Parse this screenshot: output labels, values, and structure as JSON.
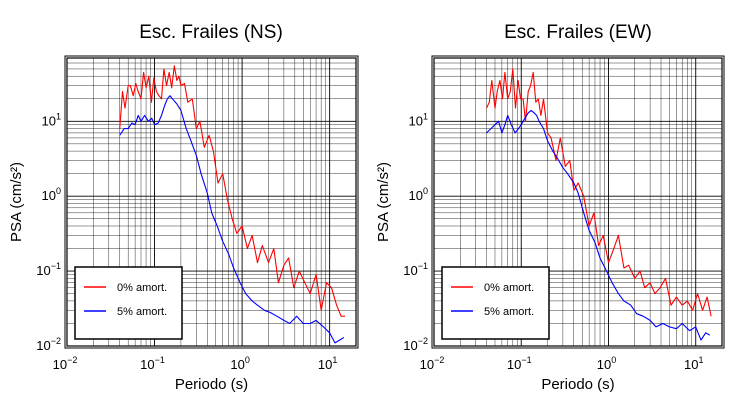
{
  "chart_data": [
    {
      "type": "line",
      "title": "Esc. Frailes (NS)",
      "xlabel": "Periodo (s)",
      "ylabel": "PSA (cm/s²)",
      "xscale": "log",
      "yscale": "log",
      "xlim": [
        0.01,
        20
      ],
      "ylim": [
        0.01,
        70
      ],
      "grid": true,
      "x_ticks": [
        {
          "base": "10",
          "exp": "−2"
        },
        {
          "base": "10",
          "exp": "−1"
        },
        {
          "base": "10",
          "exp": "0"
        },
        {
          "base": "10",
          "exp": "1"
        }
      ],
      "y_ticks": [
        {
          "base": "10",
          "exp": "−2"
        },
        {
          "base": "10",
          "exp": "−1"
        },
        {
          "base": "10",
          "exp": "0"
        },
        {
          "base": "10",
          "exp": "1"
        }
      ],
      "legend": {
        "position": "bottom-left"
      },
      "series": [
        {
          "name": "0% amort.",
          "color": "#ff0000",
          "x": [
            0.04,
            0.043,
            0.046,
            0.05,
            0.053,
            0.057,
            0.061,
            0.065,
            0.07,
            0.075,
            0.08,
            0.086,
            0.092,
            0.098,
            0.105,
            0.112,
            0.12,
            0.128,
            0.137,
            0.147,
            0.157,
            0.168,
            0.18,
            0.19,
            0.2,
            0.22,
            0.24,
            0.27,
            0.3,
            0.33,
            0.37,
            0.42,
            0.47,
            0.53,
            0.6,
            0.68,
            0.77,
            0.87,
            1.0,
            1.15,
            1.3,
            1.5,
            1.7,
            2.0,
            2.3,
            2.6,
            3.0,
            3.4,
            3.9,
            4.5,
            5.2,
            6.0,
            7.0,
            8.0,
            9.2,
            10.5,
            12.0,
            13.5,
            15.0
          ],
          "y": [
            8,
            25,
            15,
            30,
            30,
            22,
            32,
            25,
            20,
            45,
            28,
            40,
            18,
            38,
            25,
            22,
            20,
            50,
            30,
            45,
            28,
            55,
            35,
            40,
            30,
            32,
            18,
            20,
            8,
            10,
            4.5,
            6.5,
            4,
            1.5,
            2.0,
            0.9,
            0.5,
            0.32,
            0.4,
            0.2,
            0.3,
            0.13,
            0.22,
            0.13,
            0.2,
            0.07,
            0.12,
            0.15,
            0.06,
            0.1,
            0.07,
            0.05,
            0.09,
            0.03,
            0.07,
            0.06,
            0.035,
            0.025,
            0.025
          ]
        },
        {
          "name": "5% amort.",
          "color": "#0000ff",
          "x": [
            0.04,
            0.045,
            0.05,
            0.055,
            0.06,
            0.065,
            0.07,
            0.077,
            0.085,
            0.093,
            0.1,
            0.11,
            0.12,
            0.13,
            0.14,
            0.15,
            0.16,
            0.18,
            0.2,
            0.23,
            0.26,
            0.3,
            0.34,
            0.4,
            0.45,
            0.52,
            0.6,
            0.7,
            0.8,
            0.95,
            1.1,
            1.3,
            1.5,
            1.8,
            2.1,
            2.5,
            3.0,
            3.5,
            4.2,
            5.0,
            6.0,
            7.0,
            8.5,
            10.0,
            11.5,
            13.0,
            14.5
          ],
          "y": [
            6.5,
            8,
            8,
            9.5,
            9,
            12,
            10,
            12,
            10,
            11,
            9,
            9.5,
            12,
            16,
            20,
            22,
            20,
            17,
            14,
            8,
            5.5,
            3.5,
            2.0,
            1.1,
            0.6,
            0.4,
            0.25,
            0.17,
            0.11,
            0.07,
            0.05,
            0.04,
            0.035,
            0.03,
            0.028,
            0.025,
            0.022,
            0.02,
            0.025,
            0.02,
            0.02,
            0.022,
            0.018,
            0.015,
            0.011,
            0.012,
            0.013
          ]
        }
      ]
    },
    {
      "type": "line",
      "title": "Esc. Frailes (EW)",
      "xlabel": "Periodo (s)",
      "ylabel": "PSA (cm/s²)",
      "xscale": "log",
      "yscale": "log",
      "xlim": [
        0.01,
        20
      ],
      "ylim": [
        0.01,
        70
      ],
      "grid": true,
      "x_ticks": [
        {
          "base": "10",
          "exp": "−2"
        },
        {
          "base": "10",
          "exp": "−1"
        },
        {
          "base": "10",
          "exp": "0"
        },
        {
          "base": "10",
          "exp": "1"
        }
      ],
      "y_ticks": [
        {
          "base": "10",
          "exp": "−2"
        },
        {
          "base": "10",
          "exp": "−1"
        },
        {
          "base": "10",
          "exp": "0"
        },
        {
          "base": "10",
          "exp": "1"
        }
      ],
      "legend": {
        "position": "bottom-left"
      },
      "series": [
        {
          "name": "0% amort.",
          "color": "#ff0000",
          "x": [
            0.04,
            0.043,
            0.046,
            0.05,
            0.053,
            0.057,
            0.061,
            0.065,
            0.07,
            0.075,
            0.08,
            0.086,
            0.092,
            0.098,
            0.105,
            0.112,
            0.12,
            0.128,
            0.137,
            0.147,
            0.157,
            0.168,
            0.18,
            0.2,
            0.22,
            0.25,
            0.28,
            0.32,
            0.36,
            0.4,
            0.45,
            0.52,
            0.6,
            0.68,
            0.77,
            0.87,
            1.0,
            1.15,
            1.3,
            1.5,
            1.7,
            2.0,
            2.3,
            2.6,
            3.0,
            3.4,
            3.9,
            4.5,
            5.2,
            6.0,
            7.0,
            8.0,
            9.2,
            10.5,
            12.0,
            13.5,
            15.0
          ],
          "y": [
            15,
            18,
            35,
            15,
            25,
            35,
            20,
            45,
            20,
            25,
            50,
            15,
            35,
            20,
            20,
            10,
            25,
            30,
            45,
            18,
            20,
            12,
            20,
            7,
            6,
            3,
            6,
            2.5,
            3,
            1.2,
            1.5,
            1.0,
            0.4,
            0.6,
            0.22,
            0.3,
            0.13,
            0.2,
            0.3,
            0.11,
            0.12,
            0.08,
            0.1,
            0.06,
            0.07,
            0.05,
            0.06,
            0.08,
            0.035,
            0.045,
            0.035,
            0.04,
            0.03,
            0.05,
            0.03,
            0.045,
            0.025
          ]
        },
        {
          "name": "5% amort.",
          "color": "#0000ff",
          "x": [
            0.04,
            0.045,
            0.05,
            0.055,
            0.06,
            0.065,
            0.07,
            0.077,
            0.085,
            0.093,
            0.1,
            0.11,
            0.12,
            0.13,
            0.14,
            0.15,
            0.16,
            0.18,
            0.2,
            0.23,
            0.26,
            0.3,
            0.34,
            0.4,
            0.45,
            0.52,
            0.6,
            0.7,
            0.8,
            0.95,
            1.1,
            1.3,
            1.5,
            1.8,
            2.1,
            2.5,
            3.0,
            3.5,
            4.2,
            5.0,
            6.0,
            7.0,
            8.5,
            10.0,
            11.5,
            13.0,
            14.5
          ],
          "y": [
            7,
            8,
            9,
            10,
            7,
            9,
            12,
            9,
            7,
            8,
            9,
            11,
            13,
            14,
            13,
            12,
            10,
            8,
            5.5,
            4,
            3.2,
            2.4,
            2.0,
            1.5,
            1.1,
            0.6,
            0.35,
            0.24,
            0.15,
            0.1,
            0.07,
            0.05,
            0.04,
            0.035,
            0.027,
            0.025,
            0.022,
            0.018,
            0.02,
            0.018,
            0.017,
            0.02,
            0.016,
            0.018,
            0.012,
            0.015,
            0.014
          ]
        }
      ]
    }
  ]
}
